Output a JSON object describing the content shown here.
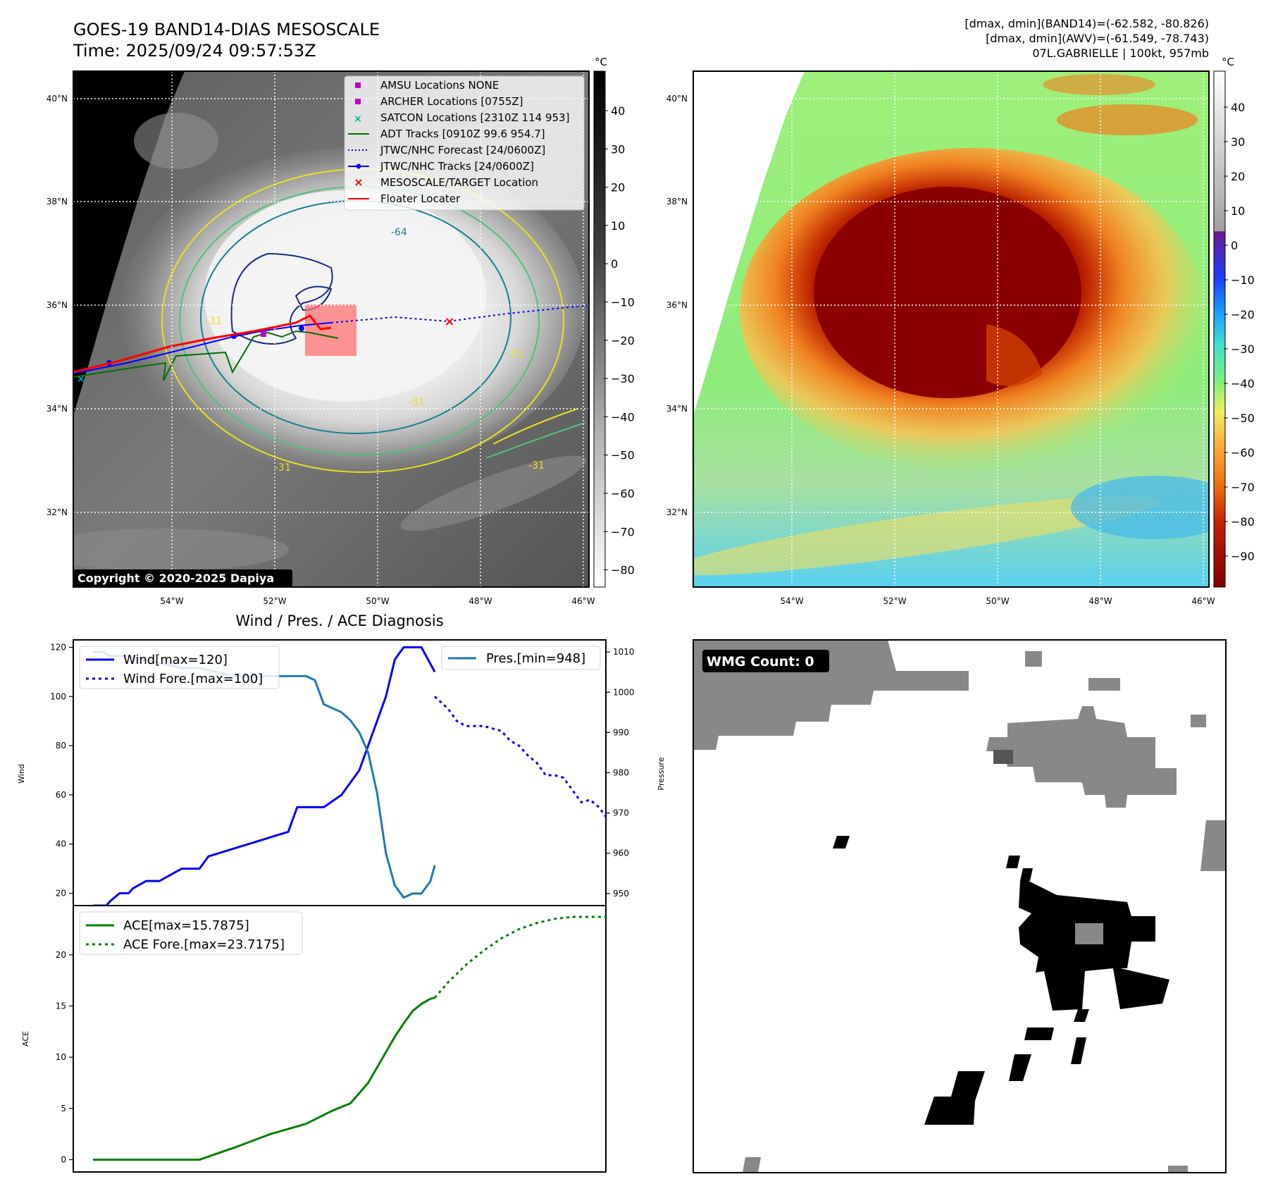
{
  "header": {
    "title_line1": "GOES-19 BAND14-DIAS MESOSCALE",
    "title_line2": "Time: 2025/09/24 09:57:53Z",
    "right_line1": "[dmax, dmin](BAND14)=(-62.582, -80.826)",
    "right_line2": "[dmax, dmin](AWV)=(-61.549, -78.743)",
    "right_line3": "07L.GABRIELLE | 100kt, 957mb"
  },
  "map_axes": {
    "lon_labels": [
      "54°W",
      "52°W",
      "50°W",
      "48°W",
      "46°W"
    ],
    "lat_labels": [
      "40°N",
      "38°N",
      "36°N",
      "34°N",
      "32°N"
    ]
  },
  "colorbar_left": {
    "unit": "°C",
    "ticks": [
      "40",
      "30",
      "20",
      "10",
      "0",
      "−10",
      "−20",
      "−30",
      "−40",
      "−50",
      "−60",
      "−70",
      "−80"
    ]
  },
  "colorbar_right": {
    "unit": "°C",
    "ticks": [
      "40",
      "30",
      "20",
      "10",
      "0",
      "−10",
      "−20",
      "−30",
      "−40",
      "−50",
      "−60",
      "−70",
      "−80",
      "−90"
    ]
  },
  "legend": {
    "items": [
      {
        "label": "AMSU Locations NONE",
        "color": "#c000c0"
      },
      {
        "label": "ARCHER Locations [0755Z]",
        "color": "#c000c0"
      },
      {
        "label": "SATCON Locations [2310Z 114 953]",
        "color": "#00b0b0"
      },
      {
        "label": "ADT Tracks [0910Z 99.6 954.7]",
        "color": "#007000"
      },
      {
        "label": "JTWC/NHC Forecast [24/0600Z]",
        "color": "#0000ff"
      },
      {
        "label": "JTWC/NHC Tracks [24/0600Z]",
        "color": "#0000ff"
      },
      {
        "label": "MESOSCALE/TARGET Location",
        "color": "#ff0000"
      },
      {
        "label": "Floater Locater",
        "color": "#ff0000"
      }
    ]
  },
  "contour_labels": [
    "-64",
    "-31",
    "-31",
    "-31",
    "-31",
    "-31"
  ],
  "copyright": "Copyright © 2020-2025 Dapiya",
  "wmg": {
    "label": "WMG Count: 0"
  },
  "chart_data": [
    {
      "type": "line",
      "title": "Wind / Pres. / ACE Diagnosis",
      "ylabel": "Wind",
      "ylabel_right": "Pressure",
      "ylim": [
        15,
        123
      ],
      "ylim_right": [
        947,
        1013
      ],
      "y_ticks": [
        20,
        40,
        60,
        80,
        100,
        120
      ],
      "y_ticks_right": [
        950,
        960,
        970,
        980,
        990,
        1000,
        1010
      ],
      "xlim": [
        0,
        60
      ],
      "series": [
        {
          "name": "Wind[max=120]",
          "style": "solid",
          "color": "#0000ff",
          "axis": "left",
          "x": [
            0,
            1.5,
            2,
            3,
            4,
            4.5,
            6,
            7,
            7.5,
            9,
            10,
            11,
            12,
            13,
            22,
            23,
            24,
            26,
            28,
            29,
            30,
            31,
            32,
            33,
            34,
            35,
            36,
            37,
            38.5
          ],
          "y": [
            15,
            15,
            17,
            20,
            20,
            22,
            25,
            25,
            25,
            28,
            30,
            30,
            30,
            35,
            45,
            55,
            55,
            55,
            60,
            65,
            70,
            80,
            90,
            100,
            115,
            120,
            120,
            120,
            110
          ]
        },
        {
          "name": "Wind Fore.[max=100]",
          "style": "dotted",
          "color": "#0000ff",
          "axis": "left",
          "x": [
            38.5,
            40,
            41,
            42,
            43,
            44,
            45,
            46,
            47,
            48,
            49,
            50,
            51,
            52,
            53,
            54,
            55,
            56,
            57,
            58
          ],
          "y": [
            100,
            95,
            90,
            88,
            88,
            88,
            87,
            86,
            82,
            80,
            76,
            73,
            68,
            68,
            67,
            62,
            57,
            58,
            55,
            50
          ]
        },
        {
          "name": "Pres.[min=948]",
          "style": "solid",
          "color": "#1f77b4",
          "axis": "right",
          "x": [
            0,
            1,
            2,
            4,
            6,
            8,
            10,
            12,
            14,
            16,
            20,
            24,
            25,
            26,
            28,
            29,
            30,
            31,
            32,
            33,
            34,
            35,
            36,
            37,
            38,
            38.5
          ],
          "y": [
            1010,
            1010,
            1009,
            1009,
            1008,
            1007,
            1006,
            1006,
            1005,
            1004,
            1004,
            1004,
            1003,
            997,
            995,
            993,
            990,
            985,
            975,
            960,
            952,
            949,
            950,
            950,
            953,
            957
          ]
        },
        {
          "name": "ACE[max=15.7875]",
          "style": "solid",
          "color": "#008000",
          "axis": "ace",
          "x": [
            0,
            4,
            8,
            12,
            16,
            20,
            24,
            27,
            29,
            30,
            31,
            32,
            33,
            34,
            35,
            36,
            37,
            38,
            38.5
          ],
          "y": [
            0,
            0,
            0,
            0,
            1.2,
            2.5,
            3.5,
            4.8,
            5.5,
            6.5,
            7.5,
            9,
            10.5,
            12,
            13.3,
            14.5,
            15.2,
            15.7,
            15.8
          ]
        },
        {
          "name": "ACE Fore.[max=23.7175]",
          "style": "dotted",
          "color": "#008000",
          "axis": "ace",
          "x": [
            38.5,
            40,
            42,
            44,
            46,
            48,
            50,
            52,
            54,
            56,
            58
          ],
          "y": [
            15.8,
            17.3,
            19,
            20.4,
            21.6,
            22.5,
            23.1,
            23.5,
            23.7,
            23.7,
            23.7
          ]
        }
      ],
      "legend_left": [
        "Wind[max=120]",
        "Wind Fore.[max=100]"
      ],
      "legend_right": [
        "Pres.[min=948]"
      ]
    },
    {
      "type": "line",
      "ylabel": "ACE",
      "ylim": [
        -1.2,
        24.8
      ],
      "y_ticks": [
        0,
        5,
        10,
        15,
        20
      ],
      "legend": [
        "ACE[max=15.7875]",
        "ACE Fore.[max=23.7175]"
      ]
    }
  ]
}
